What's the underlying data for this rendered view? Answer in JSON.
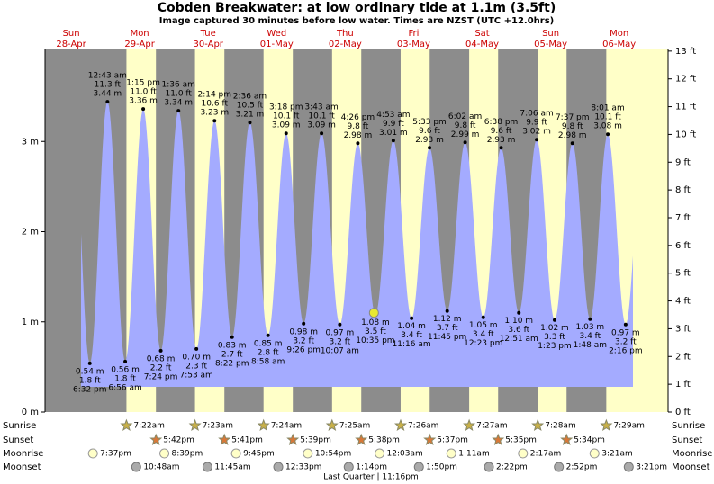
{
  "chart_data": {
    "type": "tide",
    "title": "Cobden Breakwater: at low  ordinary tide at 1.1m (3.5ft)",
    "subtitle": "Image captured 30 minutes before low water. Times are NZST (UTC +12.0hrs)",
    "categories": [
      {
        "day": "Sun",
        "date": "28-Apr"
      },
      {
        "day": "Mon",
        "date": "29-Apr"
      },
      {
        "day": "Tue",
        "date": "30-Apr"
      },
      {
        "day": "Wed",
        "date": "01-May"
      },
      {
        "day": "Thu",
        "date": "02-May"
      },
      {
        "day": "Fri",
        "date": "03-May"
      },
      {
        "day": "Sat",
        "date": "04-May"
      },
      {
        "day": "Sun",
        "date": "05-May"
      },
      {
        "day": "Mon",
        "date": "06-May"
      }
    ],
    "ylim": [
      0,
      4.02
    ],
    "yticks": [
      {
        "value": 0,
        "label": "0 m"
      },
      {
        "value": 1,
        "label": "1 m"
      },
      {
        "value": 2,
        "label": "2 m"
      },
      {
        "value": 3,
        "label": "3 m"
      }
    ],
    "y2lim": [
      0,
      13.06
    ],
    "y2ticks": [
      {
        "value": 0,
        "label": "0 ft"
      },
      {
        "value": 1,
        "label": "1 ft"
      },
      {
        "value": 2,
        "label": "2 ft"
      },
      {
        "value": 3,
        "label": "3 ft"
      },
      {
        "value": 4,
        "label": "4 ft"
      },
      {
        "value": 5,
        "label": "5 ft"
      },
      {
        "value": 6,
        "label": "6 ft"
      },
      {
        "value": 7,
        "label": "7 ft"
      },
      {
        "value": 8,
        "label": "8 ft"
      },
      {
        "value": 9,
        "label": "9 ft"
      },
      {
        "value": 10,
        "label": "10 ft"
      },
      {
        "value": 11,
        "label": "11 ft"
      },
      {
        "value": 12,
        "label": "12 ft"
      },
      {
        "value": 13,
        "label": "13 ft"
      }
    ],
    "colors": {
      "night": "#8c8c8c",
      "day": "#ffffc8",
      "water": "#a4abff"
    },
    "events": [
      {
        "time": "6:32 pm",
        "height": 0.54,
        "height_label": "0.54 m",
        "ft": "1.8 ft"
      },
      {
        "time": "12:43 am",
        "height": 3.44,
        "height_label": "3.44 m",
        "ft": "11.3 ft"
      },
      {
        "time": "6:56 am",
        "height": 0.56,
        "height_label": "0.56 m",
        "ft": "1.8 ft"
      },
      {
        "time": "1:15 pm",
        "height": 3.36,
        "height_label": "3.36 m",
        "ft": "11.0 ft"
      },
      {
        "time": "7:24 pm",
        "height": 0.68,
        "height_label": "0.68 m",
        "ft": "2.2 ft"
      },
      {
        "time": "1:36 am",
        "height": 3.34,
        "height_label": "3.34 m",
        "ft": "11.0 ft"
      },
      {
        "time": "7:53 am",
        "height": 0.7,
        "height_label": "0.70 m",
        "ft": "2.3 ft"
      },
      {
        "time": "2:14 pm",
        "height": 3.23,
        "height_label": "3.23 m",
        "ft": "10.6 ft"
      },
      {
        "time": "8:22 pm",
        "height": 0.83,
        "height_label": "0.83 m",
        "ft": "2.7 ft"
      },
      {
        "time": "2:36 am",
        "height": 3.21,
        "height_label": "3.21 m",
        "ft": "10.5 ft"
      },
      {
        "time": "8:58 am",
        "height": 0.85,
        "height_label": "0.85 m",
        "ft": "2.8 ft"
      },
      {
        "time": "3:18 pm",
        "height": 3.09,
        "height_label": "3.09 m",
        "ft": "10.1 ft"
      },
      {
        "time": "9:26 pm",
        "height": 0.98,
        "height_label": "0.98 m",
        "ft": "3.2 ft"
      },
      {
        "time": "3:43 am",
        "height": 3.09,
        "height_label": "3.09 m",
        "ft": "10.1 ft"
      },
      {
        "time": "10:07 am",
        "height": 0.97,
        "height_label": "0.97 m",
        "ft": "3.2 ft"
      },
      {
        "time": "4:26 pm",
        "height": 2.98,
        "height_label": "2.98 m",
        "ft": "9.8 ft"
      },
      {
        "time": "10:35 pm",
        "height": 1.08,
        "height_label": "1.08 m",
        "ft": "3.5 ft"
      },
      {
        "time": "4:53 am",
        "height": 3.01,
        "height_label": "3.01 m",
        "ft": "9.9 ft"
      },
      {
        "time": "11:16 am",
        "height": 1.04,
        "height_label": "1.04 m",
        "ft": "3.4 ft"
      },
      {
        "time": "5:33 pm",
        "height": 2.93,
        "height_label": "2.93 m",
        "ft": "9.6 ft"
      },
      {
        "time": "11:45 pm",
        "height": 1.12,
        "height_label": "1.12 m",
        "ft": "3.7 ft"
      },
      {
        "time": "6:02 am",
        "height": 2.99,
        "height_label": "2.99 m",
        "ft": "9.8 ft"
      },
      {
        "time": "12:23 pm",
        "height": 1.05,
        "height_label": "1.05 m",
        "ft": "3.4 ft"
      },
      {
        "time": "6:38 pm",
        "height": 2.93,
        "height_label": "2.93 m",
        "ft": "9.6 ft"
      },
      {
        "time": "12:51 am",
        "height": 1.1,
        "height_label": "1.10 m",
        "ft": "3.6 ft"
      },
      {
        "time": "7:06 am",
        "height": 3.02,
        "height_label": "3.02 m",
        "ft": "9.9 ft"
      },
      {
        "time": "1:23 pm",
        "height": 1.02,
        "height_label": "1.02 m",
        "ft": "3.3 ft"
      },
      {
        "time": "7:37 pm",
        "height": 2.98,
        "height_label": "2.98 m",
        "ft": "9.8 ft"
      },
      {
        "time": "1:48 am",
        "height": 1.03,
        "height_label": "1.03 m",
        "ft": "3.4 ft"
      },
      {
        "time": "8:01 am",
        "height": 3.08,
        "height_label": "3.08 m",
        "ft": "10.1 ft"
      },
      {
        "time": "2:16 pm",
        "height": 0.97,
        "height_label": "0.97 m",
        "ft": "3.2 ft"
      }
    ],
    "current_height": 1.1,
    "rows": [
      {
        "label": "Sunrise",
        "times": [
          "7:22am",
          "7:23am",
          "7:24am",
          "7:25am",
          "7:26am",
          "7:27am",
          "7:28am",
          "7:29am"
        ]
      },
      {
        "label": "Sunset",
        "times": [
          "5:42pm",
          "5:41pm",
          "5:39pm",
          "5:38pm",
          "5:37pm",
          "5:35pm",
          "5:34pm"
        ]
      },
      {
        "label": "Moonrise",
        "times": [
          "7:37pm",
          "8:39pm",
          "9:45pm",
          "10:54pm",
          "12:03am",
          "1:11am",
          "2:17am",
          "3:21am"
        ]
      },
      {
        "label": "Moonset",
        "times": [
          "10:48am",
          "11:45am",
          "12:33pm",
          "1:14pm",
          "1:50pm",
          "2:22pm",
          "2:52pm",
          "3:21pm"
        ]
      }
    ],
    "moon_phase": "Last Quarter | 11:16pm"
  }
}
